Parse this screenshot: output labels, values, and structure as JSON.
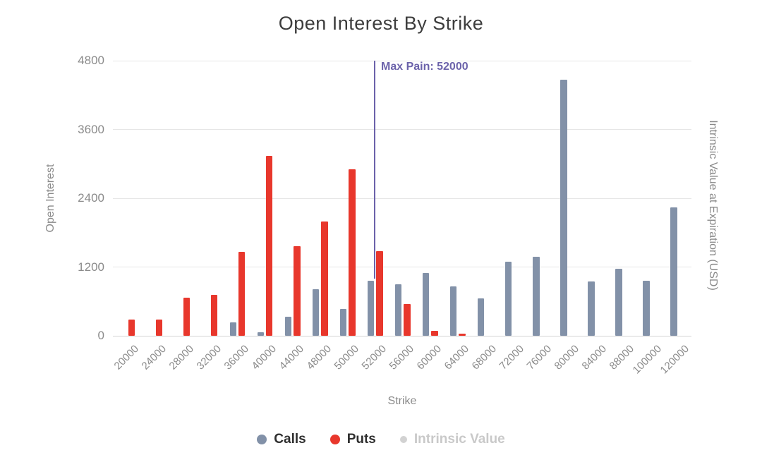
{
  "title": "Open Interest By Strike",
  "axes": {
    "left_title": "Open Interest",
    "right_title": "Intrinsic Value at Expiration (USD)",
    "x_title": "Strike"
  },
  "max_pain": {
    "label": "Max Pain: 52000",
    "strike": "52000",
    "color": "#6b62aa",
    "line_bottom_value": 1000
  },
  "legend": [
    {
      "label": "Calls",
      "color": "#8291a8",
      "enabled": true
    },
    {
      "label": "Puts",
      "color": "#e8372c",
      "enabled": true
    },
    {
      "label": "Intrinsic Value",
      "color": "#d2d2d2",
      "enabled": false
    }
  ],
  "chart_data": {
    "type": "bar",
    "title": "Open Interest By Strike",
    "xlabel": "Strike",
    "ylabel_left": "Open Interest",
    "ylabel_right": "Intrinsic Value at Expiration (USD)",
    "ylim": [
      0,
      4800
    ],
    "yticks": [
      0,
      1200,
      2400,
      3600,
      4800
    ],
    "grid": true,
    "legend_position": "bottom",
    "categories": [
      "20000",
      "24000",
      "28000",
      "32000",
      "36000",
      "40000",
      "44000",
      "48000",
      "50000",
      "52000",
      "56000",
      "60000",
      "64000",
      "68000",
      "72000",
      "76000",
      "80000",
      "84000",
      "88000",
      "100000",
      "120000"
    ],
    "series": [
      {
        "name": "Calls",
        "color": "#8291a8",
        "values": [
          0,
          0,
          0,
          0,
          240,
          60,
          330,
          810,
          470,
          960,
          900,
          1100,
          860,
          650,
          1290,
          1380,
          4470,
          950,
          1170,
          960,
          2240
        ]
      },
      {
        "name": "Puts",
        "color": "#e8372c",
        "values": [
          280,
          280,
          670,
          720,
          1460,
          3140,
          1560,
          2000,
          2900,
          1480,
          560,
          90,
          40,
          0,
          0,
          0,
          0,
          0,
          0,
          0,
          0
        ]
      },
      {
        "name": "Intrinsic Value",
        "color": "#d2d2d2",
        "hidden": true,
        "values": []
      }
    ],
    "annotations": [
      {
        "type": "vline",
        "x": "52000",
        "label": "Max Pain: 52000",
        "color": "#6b62aa"
      }
    ]
  }
}
